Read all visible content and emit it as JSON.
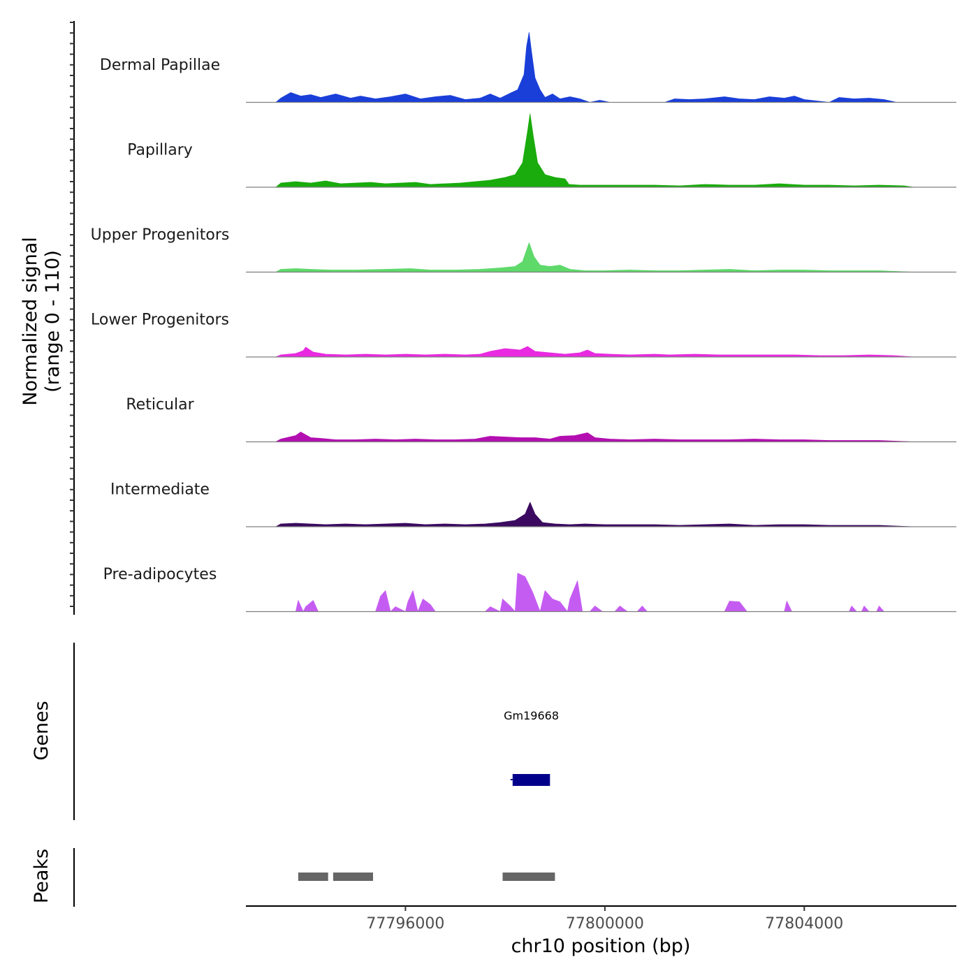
{
  "chart_data": {
    "type": "area",
    "title": "",
    "xlabel": "chr10 position (bp)",
    "ylabel": "Normalized signal",
    "ylabel_range": "(range 0 - 110)",
    "ylim": [
      0,
      110
    ],
    "xlim": [
      77792800,
      77807050
    ],
    "x_ticks": [
      {
        "value": 77796000,
        "label": "77796000"
      },
      {
        "value": 77800000,
        "label": "77800000"
      },
      {
        "value": 77804000,
        "label": "77804000"
      }
    ],
    "grid": false,
    "series": [
      {
        "name": "Dermal Papillae",
        "color": "#1a3fd9",
        "profile": [
          [
            77793400,
            0
          ],
          [
            77793500,
            6
          ],
          [
            77793700,
            14
          ],
          [
            77793900,
            9
          ],
          [
            77794100,
            11
          ],
          [
            77794300,
            7
          ],
          [
            77794600,
            12
          ],
          [
            77794900,
            6
          ],
          [
            77795100,
            9
          ],
          [
            77795400,
            5
          ],
          [
            77795700,
            8
          ],
          [
            77796000,
            12
          ],
          [
            77796300,
            5
          ],
          [
            77796600,
            8
          ],
          [
            77796900,
            10
          ],
          [
            77797200,
            4
          ],
          [
            77797500,
            6
          ],
          [
            77797700,
            12
          ],
          [
            77797900,
            6
          ],
          [
            77798100,
            13
          ],
          [
            77798250,
            18
          ],
          [
            77798380,
            40
          ],
          [
            77798430,
            80
          ],
          [
            77798480,
            100
          ],
          [
            77798530,
            72
          ],
          [
            77798600,
            35
          ],
          [
            77798700,
            18
          ],
          [
            77798800,
            7
          ],
          [
            77798950,
            12
          ],
          [
            77799100,
            5
          ],
          [
            77799300,
            8
          ],
          [
            77799500,
            5
          ],
          [
            77799700,
            0
          ],
          [
            77799900,
            3
          ],
          [
            77800100,
            0
          ],
          [
            77801200,
            0
          ],
          [
            77801400,
            5
          ],
          [
            77801700,
            4
          ],
          [
            77802000,
            5
          ],
          [
            77802400,
            8
          ],
          [
            77802700,
            5
          ],
          [
            77803000,
            4
          ],
          [
            77803300,
            8
          ],
          [
            77803600,
            6
          ],
          [
            77803800,
            9
          ],
          [
            77804000,
            4
          ],
          [
            77804500,
            0
          ],
          [
            77804700,
            7
          ],
          [
            77805000,
            5
          ],
          [
            77805300,
            6
          ],
          [
            77805600,
            4
          ],
          [
            77805850,
            0
          ]
        ]
      },
      {
        "name": "Papillary",
        "color": "#1aab0c",
        "profile": [
          [
            77793400,
            0
          ],
          [
            77793500,
            6
          ],
          [
            77793800,
            8
          ],
          [
            77794100,
            6
          ],
          [
            77794400,
            9
          ],
          [
            77794700,
            5
          ],
          [
            77795000,
            6
          ],
          [
            77795300,
            7
          ],
          [
            77795600,
            5
          ],
          [
            77795900,
            6
          ],
          [
            77796200,
            7
          ],
          [
            77796500,
            4
          ],
          [
            77796800,
            5
          ],
          [
            77797100,
            6
          ],
          [
            77797400,
            8
          ],
          [
            77797700,
            10
          ],
          [
            77798000,
            14
          ],
          [
            77798200,
            18
          ],
          [
            77798350,
            35
          ],
          [
            77798450,
            80
          ],
          [
            77798500,
            105
          ],
          [
            77798560,
            75
          ],
          [
            77798650,
            35
          ],
          [
            77798800,
            18
          ],
          [
            77799000,
            14
          ],
          [
            77799200,
            12
          ],
          [
            77799280,
            4
          ],
          [
            77799500,
            3
          ],
          [
            77800000,
            3
          ],
          [
            77800500,
            3
          ],
          [
            77801000,
            3
          ],
          [
            77801500,
            2
          ],
          [
            77802000,
            4
          ],
          [
            77802500,
            3
          ],
          [
            77803000,
            3
          ],
          [
            77803500,
            5
          ],
          [
            77804000,
            3
          ],
          [
            77804500,
            3
          ],
          [
            77805000,
            2
          ],
          [
            77805500,
            3
          ],
          [
            77806000,
            2
          ],
          [
            77806200,
            0
          ]
        ]
      },
      {
        "name": "Upper Progenitors",
        "color": "#5ed96a",
        "profile": [
          [
            77793400,
            0
          ],
          [
            77793500,
            4
          ],
          [
            77793800,
            5
          ],
          [
            77794100,
            4
          ],
          [
            77794500,
            3
          ],
          [
            77795000,
            3
          ],
          [
            77795600,
            4
          ],
          [
            77796100,
            5
          ],
          [
            77796500,
            3
          ],
          [
            77797000,
            3
          ],
          [
            77797500,
            4
          ],
          [
            77797900,
            6
          ],
          [
            77798200,
            8
          ],
          [
            77798350,
            15
          ],
          [
            77798480,
            42
          ],
          [
            77798580,
            22
          ],
          [
            77798700,
            10
          ],
          [
            77798900,
            8
          ],
          [
            77799100,
            10
          ],
          [
            77799300,
            4
          ],
          [
            77799600,
            2
          ],
          [
            77800000,
            2
          ],
          [
            77800500,
            3
          ],
          [
            77801000,
            2
          ],
          [
            77801500,
            2
          ],
          [
            77802000,
            3
          ],
          [
            77802500,
            4
          ],
          [
            77803000,
            2
          ],
          [
            77803500,
            3
          ],
          [
            77804000,
            3
          ],
          [
            77804500,
            2
          ],
          [
            77805000,
            2
          ],
          [
            77805500,
            2
          ],
          [
            77806200,
            0
          ]
        ]
      },
      {
        "name": "Lower Progenitors",
        "color": "#e82ae0",
        "profile": [
          [
            77793400,
            0
          ],
          [
            77793500,
            3
          ],
          [
            77793800,
            5
          ],
          [
            77793950,
            9
          ],
          [
            77794000,
            14
          ],
          [
            77794150,
            7
          ],
          [
            77794400,
            4
          ],
          [
            77794800,
            3
          ],
          [
            77795200,
            4
          ],
          [
            77795600,
            3
          ],
          [
            77796000,
            4
          ],
          [
            77796400,
            3
          ],
          [
            77796800,
            4
          ],
          [
            77797200,
            3
          ],
          [
            77797500,
            4
          ],
          [
            77797700,
            8
          ],
          [
            77798000,
            12
          ],
          [
            77798300,
            10
          ],
          [
            77798450,
            15
          ],
          [
            77798600,
            8
          ],
          [
            77798900,
            6
          ],
          [
            77799200,
            4
          ],
          [
            77799500,
            6
          ],
          [
            77799650,
            10
          ],
          [
            77799800,
            5
          ],
          [
            77800100,
            4
          ],
          [
            77800500,
            3
          ],
          [
            77801000,
            4
          ],
          [
            77801300,
            3
          ],
          [
            77801800,
            4
          ],
          [
            77802300,
            3
          ],
          [
            77802800,
            3
          ],
          [
            77803300,
            3
          ],
          [
            77803800,
            3
          ],
          [
            77804300,
            2
          ],
          [
            77804800,
            2
          ],
          [
            77805300,
            3
          ],
          [
            77805800,
            2
          ],
          [
            77806200,
            0
          ]
        ]
      },
      {
        "name": "Reticular",
        "color": "#b30eb0",
        "profile": [
          [
            77793400,
            0
          ],
          [
            77793500,
            4
          ],
          [
            77793800,
            9
          ],
          [
            77793900,
            14
          ],
          [
            77794100,
            6
          ],
          [
            77794300,
            5
          ],
          [
            77794600,
            3
          ],
          [
            77795000,
            3
          ],
          [
            77795400,
            4
          ],
          [
            77795800,
            3
          ],
          [
            77796200,
            4
          ],
          [
            77796600,
            3
          ],
          [
            77797000,
            3
          ],
          [
            77797400,
            4
          ],
          [
            77797700,
            8
          ],
          [
            77798000,
            7
          ],
          [
            77798300,
            6
          ],
          [
            77798600,
            6
          ],
          [
            77798900,
            4
          ],
          [
            77799100,
            8
          ],
          [
            77799400,
            9
          ],
          [
            77799650,
            13
          ],
          [
            77799800,
            6
          ],
          [
            77800100,
            4
          ],
          [
            77800500,
            3
          ],
          [
            77801000,
            4
          ],
          [
            77801500,
            3
          ],
          [
            77802000,
            3
          ],
          [
            77802500,
            3
          ],
          [
            77803000,
            4
          ],
          [
            77803500,
            3
          ],
          [
            77804000,
            3
          ],
          [
            77804500,
            2
          ],
          [
            77805000,
            2
          ],
          [
            77805500,
            2
          ],
          [
            77806200,
            0
          ]
        ]
      },
      {
        "name": "Intermediate",
        "color": "#3b0a60",
        "profile": [
          [
            77793400,
            0
          ],
          [
            77793500,
            4
          ],
          [
            77793800,
            5
          ],
          [
            77794100,
            4
          ],
          [
            77794400,
            3
          ],
          [
            77794800,
            4
          ],
          [
            77795200,
            3
          ],
          [
            77795600,
            4
          ],
          [
            77796000,
            5
          ],
          [
            77796400,
            3
          ],
          [
            77796800,
            4
          ],
          [
            77797200,
            3
          ],
          [
            77797600,
            4
          ],
          [
            77797900,
            6
          ],
          [
            77798200,
            9
          ],
          [
            77798400,
            18
          ],
          [
            77798500,
            35
          ],
          [
            77798600,
            18
          ],
          [
            77798750,
            6
          ],
          [
            77799000,
            4
          ],
          [
            77799300,
            3
          ],
          [
            77799600,
            4
          ],
          [
            77800000,
            3
          ],
          [
            77800500,
            3
          ],
          [
            77801000,
            3
          ],
          [
            77801500,
            2
          ],
          [
            77802000,
            3
          ],
          [
            77802500,
            4
          ],
          [
            77803000,
            2
          ],
          [
            77803500,
            3
          ],
          [
            77804000,
            3
          ],
          [
            77804500,
            2
          ],
          [
            77805000,
            2
          ],
          [
            77805500,
            2
          ],
          [
            77806200,
            0
          ]
        ]
      },
      {
        "name": "Pre-adipocytes",
        "color": "#c55cf2",
        "profile": [
          [
            77793800,
            0
          ],
          [
            77793850,
            16
          ],
          [
            77793950,
            0
          ],
          [
            77794000,
            7
          ],
          [
            77794150,
            16
          ],
          [
            77794250,
            0
          ],
          [
            77795400,
            0
          ],
          [
            77795500,
            22
          ],
          [
            77795600,
            30
          ],
          [
            77795700,
            0
          ],
          [
            77795800,
            7
          ],
          [
            77796000,
            0
          ],
          [
            77796050,
            14
          ],
          [
            77796150,
            30
          ],
          [
            77796250,
            0
          ],
          [
            77796350,
            18
          ],
          [
            77796500,
            10
          ],
          [
            77796600,
            0
          ],
          [
            77797600,
            0
          ],
          [
            77797700,
            7
          ],
          [
            77797900,
            0
          ],
          [
            77797950,
            18
          ],
          [
            77798100,
            8
          ],
          [
            77798200,
            0
          ],
          [
            77798250,
            55
          ],
          [
            77798400,
            50
          ],
          [
            77798550,
            28
          ],
          [
            77798700,
            0
          ],
          [
            77798800,
            30
          ],
          [
            77798950,
            18
          ],
          [
            77799100,
            14
          ],
          [
            77799250,
            0
          ],
          [
            77799300,
            18
          ],
          [
            77799450,
            44
          ],
          [
            77799550,
            0
          ],
          [
            77799700,
            0
          ],
          [
            77799800,
            8
          ],
          [
            77799950,
            0
          ],
          [
            77800200,
            0
          ],
          [
            77800300,
            8
          ],
          [
            77800450,
            0
          ],
          [
            77800650,
            0
          ],
          [
            77800750,
            8
          ],
          [
            77800850,
            0
          ],
          [
            77802400,
            0
          ],
          [
            77802500,
            15
          ],
          [
            77802700,
            14
          ],
          [
            77802850,
            0
          ],
          [
            77803600,
            0
          ],
          [
            77803650,
            15
          ],
          [
            77803750,
            0
          ],
          [
            77804900,
            0
          ],
          [
            77804950,
            8
          ],
          [
            77805050,
            0
          ],
          [
            77805150,
            0
          ],
          [
            77805200,
            8
          ],
          [
            77805300,
            0
          ],
          [
            77805450,
            0
          ],
          [
            77805500,
            8
          ],
          [
            77805600,
            0
          ]
        ]
      }
    ],
    "genes": [
      {
        "name": "Gm19668",
        "start": 77798150,
        "end": 77798900
      }
    ],
    "peaks": [
      {
        "start": 77793850,
        "end": 77794450
      },
      {
        "start": 77794550,
        "end": 77795350
      },
      {
        "start": 77797950,
        "end": 77799000
      }
    ],
    "track_headers": {
      "genes": "Genes",
      "peaks": "Peaks"
    }
  }
}
